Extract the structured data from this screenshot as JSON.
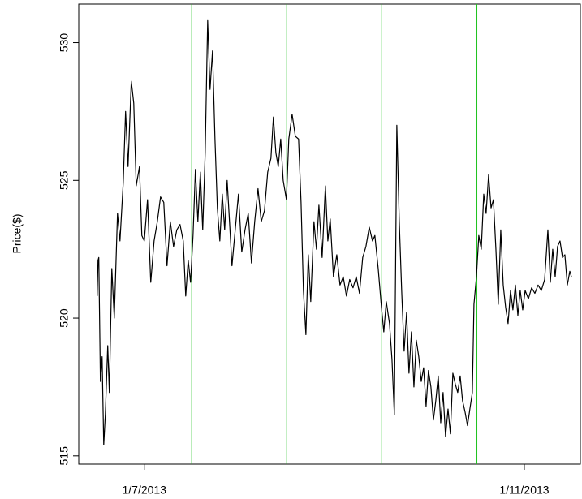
{
  "chart_data": {
    "type": "line",
    "ylabel": "Price($)",
    "xlim": [
      6.31,
      11.59
    ],
    "ylim": [
      514.7,
      531.4
    ],
    "xticks": [
      {
        "value": 7,
        "label": "1/7/2013"
      },
      {
        "value": 11,
        "label": "1/11/2013"
      }
    ],
    "yticks": [
      515,
      520,
      525,
      530
    ],
    "vlines": {
      "values": [
        7.5,
        8.5,
        9.5,
        10.5
      ],
      "color": "#22c322"
    },
    "x": [
      6.504,
      6.513,
      6.521,
      6.538,
      6.556,
      6.573,
      6.59,
      6.615,
      6.632,
      6.658,
      6.684,
      6.718,
      6.744,
      6.778,
      6.803,
      6.829,
      6.863,
      6.889,
      6.915,
      6.949,
      6.974,
      7.0,
      7.034,
      7.068,
      7.103,
      7.137,
      7.171,
      7.205,
      7.239,
      7.274,
      7.308,
      7.342,
      7.376,
      7.41,
      7.436,
      7.462,
      7.487,
      7.513,
      7.538,
      7.564,
      7.59,
      7.615,
      7.641,
      7.667,
      7.692,
      7.718,
      7.744,
      7.769,
      7.795,
      7.821,
      7.846,
      7.872,
      7.897,
      7.923,
      7.957,
      7.991,
      8.026,
      8.06,
      8.094,
      8.128,
      8.162,
      8.197,
      8.231,
      8.265,
      8.299,
      8.333,
      8.359,
      8.385,
      8.41,
      8.436,
      8.462,
      8.496,
      8.521,
      8.556,
      8.59,
      8.624,
      8.65,
      8.675,
      8.701,
      8.726,
      8.752,
      8.786,
      8.812,
      8.838,
      8.872,
      8.906,
      8.932,
      8.957,
      8.991,
      9.026,
      9.06,
      9.094,
      9.128,
      9.162,
      9.197,
      9.231,
      9.265,
      9.299,
      9.333,
      9.368,
      9.402,
      9.427,
      9.462,
      9.496,
      9.521,
      9.547,
      9.581,
      9.607,
      9.632,
      9.658,
      9.684,
      9.709,
      9.735,
      9.761,
      9.786,
      9.812,
      9.838,
      9.863,
      9.889,
      9.915,
      9.94,
      9.966,
      9.991,
      10.017,
      10.043,
      10.068,
      10.094,
      10.12,
      10.145,
      10.171,
      10.197,
      10.222,
      10.248,
      10.274,
      10.299,
      10.325,
      10.35,
      10.376,
      10.402,
      10.427,
      10.453,
      10.47,
      10.496,
      10.521,
      10.547,
      10.573,
      10.598,
      10.624,
      10.65,
      10.675,
      10.701,
      10.726,
      10.752,
      10.778,
      10.803,
      10.829,
      10.855,
      10.88,
      10.906,
      10.932,
      10.957,
      10.983,
      11.009,
      11.043,
      11.077,
      11.111,
      11.145,
      11.179,
      11.214,
      11.248,
      11.274,
      11.299,
      11.325,
      11.35,
      11.376,
      11.402,
      11.427,
      11.453,
      11.479,
      11.496
    ],
    "series": [
      {
        "color": "#000000",
        "values": [
          520.8,
          522.1,
          522.2,
          517.7,
          518.6,
          515.4,
          516.5,
          519,
          517.3,
          521.8,
          520,
          523.8,
          522.8,
          524.9,
          527.5,
          525.5,
          528.6,
          527.8,
          524.8,
          525.5,
          523,
          522.8,
          524.3,
          521.3,
          522.8,
          523.5,
          524.4,
          524.2,
          521.9,
          523.5,
          522.6,
          523.2,
          523.4,
          522.8,
          520.8,
          522.1,
          521.3,
          523,
          525.4,
          523.5,
          525.3,
          523.2,
          526,
          530.8,
          528.3,
          529.7,
          526.5,
          524,
          522.8,
          524.5,
          523.2,
          525,
          523.5,
          521.9,
          523.2,
          524.5,
          522.4,
          523.2,
          523.8,
          522,
          523.5,
          524.7,
          523.5,
          523.9,
          525.3,
          525.8,
          527.3,
          526,
          525.5,
          526.5,
          525,
          524.3,
          526.5,
          527.4,
          526.6,
          526.5,
          524.2,
          521,
          519.4,
          522.3,
          520.6,
          523.5,
          522.5,
          524.1,
          522.2,
          524.8,
          522.8,
          523.6,
          521.5,
          522.3,
          521.2,
          521.5,
          520.8,
          521.4,
          521.1,
          521.5,
          520.9,
          522.2,
          522.6,
          523.3,
          522.8,
          523,
          521.8,
          520.4,
          519.5,
          520.6,
          519.8,
          518.5,
          516.5,
          527,
          523.5,
          521,
          518.8,
          520.2,
          518,
          519.5,
          517.5,
          519.2,
          518.6,
          517.7,
          518.2,
          516.8,
          518.1,
          517.5,
          516.3,
          517,
          517.9,
          516.2,
          517.3,
          515.7,
          516.7,
          515.8,
          518,
          517.6,
          517.3,
          517.9,
          517,
          516.6,
          516.1,
          516.7,
          517.3,
          520.5,
          521.5,
          523,
          522.5,
          524.5,
          523.8,
          525.2,
          524,
          524.3,
          522.5,
          520.5,
          523.2,
          521.2,
          520.4,
          519.8,
          521,
          520.3,
          521.2,
          520.1,
          521,
          520.3,
          521,
          520.7,
          521.1,
          520.9,
          521.2,
          521,
          521.4,
          523.2,
          521.3,
          522.5,
          521.5,
          522.6,
          522.8,
          522.2,
          522.3,
          521.2,
          521.7,
          521.5
        ]
      }
    ]
  }
}
